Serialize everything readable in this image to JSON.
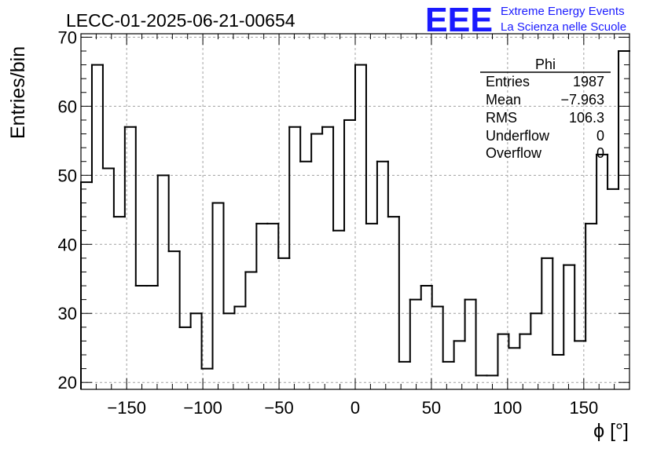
{
  "logo": {
    "text": "EEE",
    "line1": "Extreme Energy Events",
    "line2": "La Scienza nelle Scuole",
    "color": "#1a1aff"
  },
  "chart_data": {
    "type": "histogram",
    "title": "LECC-01-2025-06-21-00654",
    "xlabel": "ϕ [°]",
    "ylabel": "Entries/bin",
    "xlim": [
      -180,
      180
    ],
    "ylim": [
      19,
      70.5
    ],
    "xticks": [
      -150,
      -100,
      -50,
      0,
      50,
      100,
      150
    ],
    "xtick_labels": [
      "−150",
      "−100",
      "−50",
      "0",
      "50",
      "100",
      "150"
    ],
    "yticks": [
      20,
      30,
      40,
      50,
      60,
      70
    ],
    "ytick_labels": [
      "20",
      "30",
      "40",
      "50",
      "60",
      "70"
    ],
    "grid": true,
    "bin_width": 7.2,
    "bin_low_edge": -180,
    "values": [
      49,
      66,
      51,
      44,
      57,
      34,
      34,
      50,
      39,
      28,
      30,
      22,
      46,
      30,
      31,
      36,
      43,
      43,
      38,
      57,
      52,
      56,
      57,
      42,
      58,
      66,
      43,
      52,
      44,
      23,
      32,
      34,
      31,
      23,
      26,
      32,
      21,
      21,
      27,
      25,
      27,
      30,
      38,
      24,
      37,
      26,
      43,
      53,
      48,
      68
    ],
    "stats": {
      "name": "Phi",
      "rows": [
        {
          "label": "Entries",
          "value": "1987"
        },
        {
          "label": "Mean",
          "value": "−7.963"
        },
        {
          "label": "RMS",
          "value": "106.3"
        },
        {
          "label": "Underflow",
          "value": "0"
        },
        {
          "label": "Overflow",
          "value": "0"
        }
      ]
    }
  }
}
